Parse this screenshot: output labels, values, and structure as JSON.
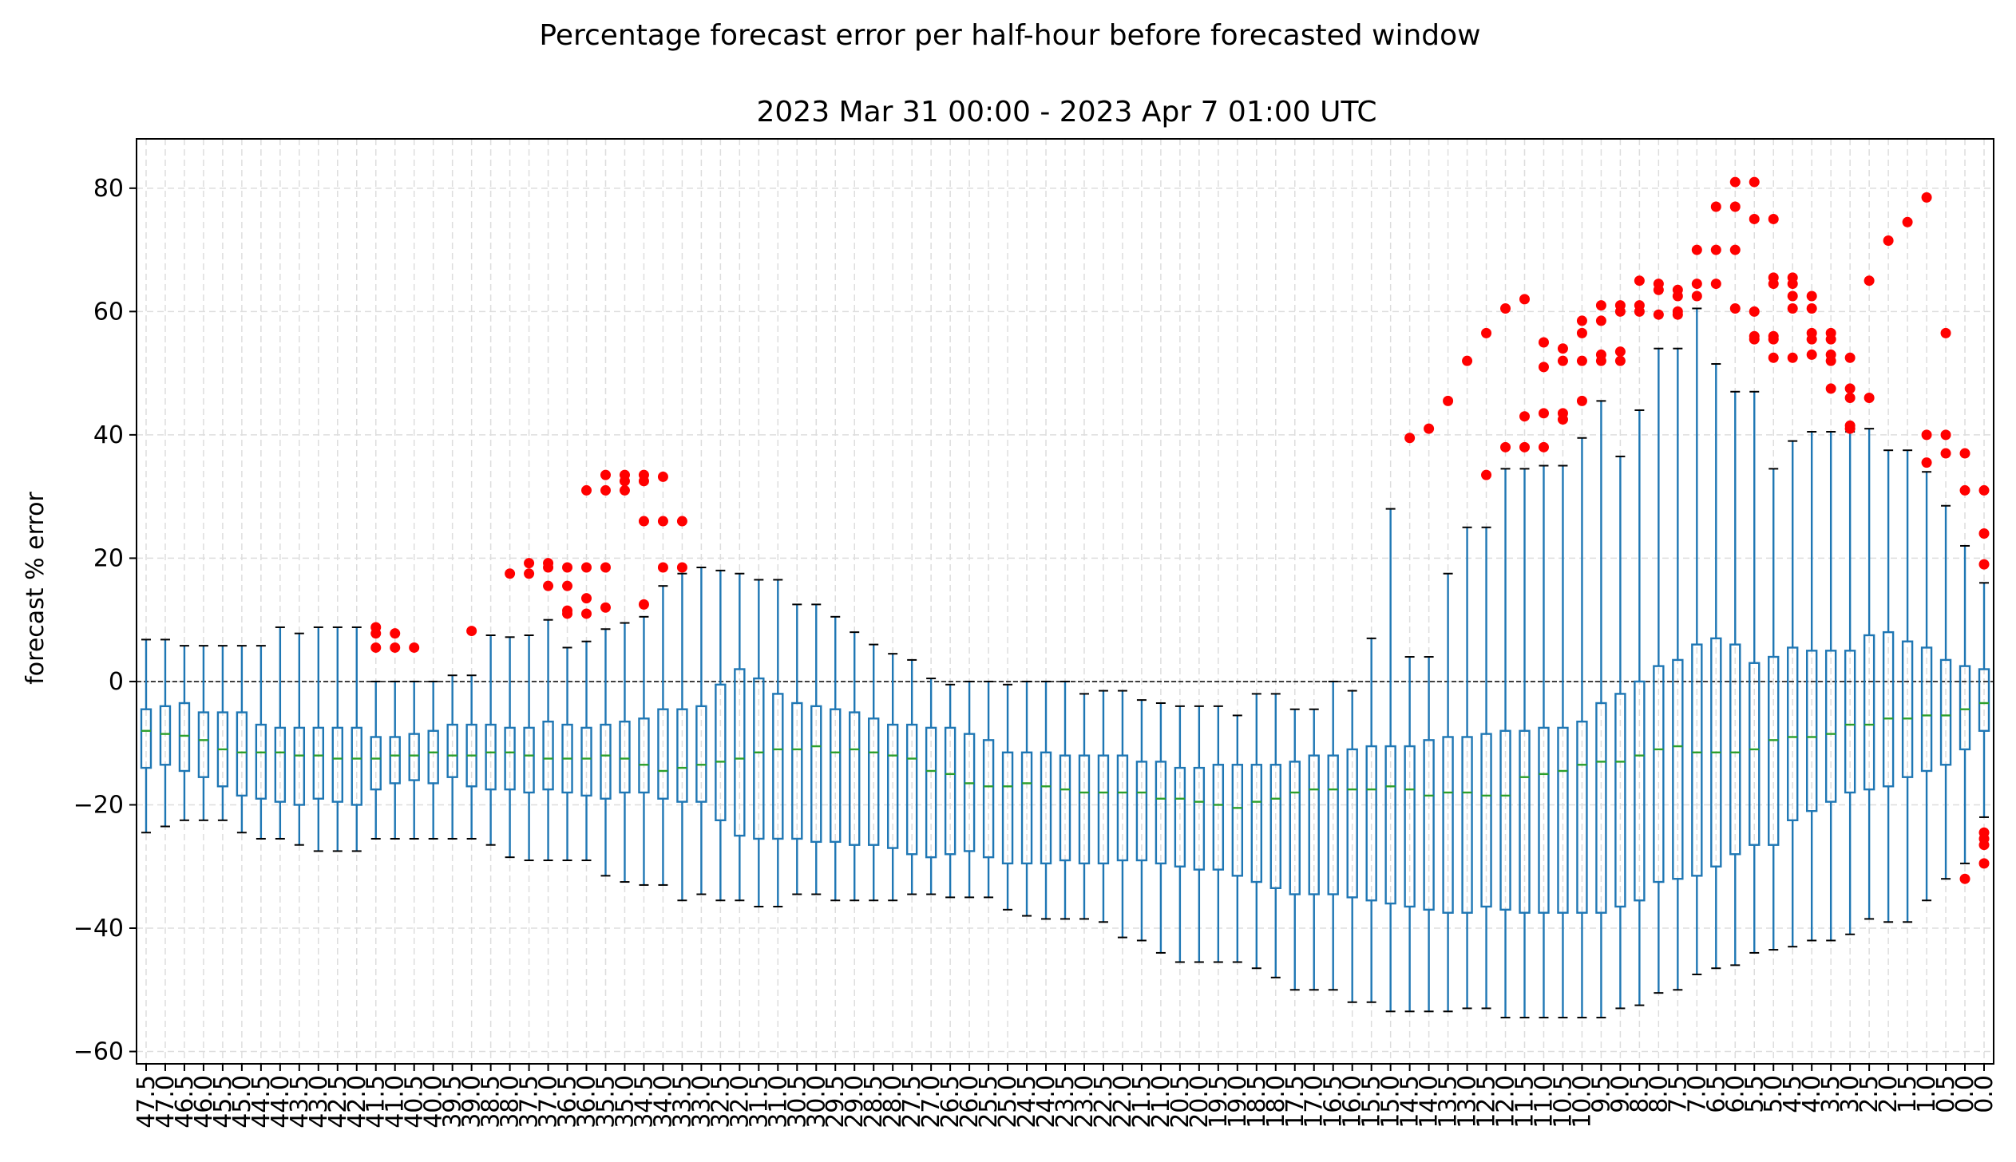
{
  "chart_data": {
    "type": "box",
    "title": "Percentage forecast error per half-hour before forecasted window",
    "subtitle": "2023 Mar 31 00:00 - 2023 Apr 7 01:00 UTC",
    "xlabel": "",
    "ylabel": "forecast % error",
    "ylim": [
      -62,
      88
    ],
    "yticks": [
      -60,
      -40,
      -20,
      0,
      20,
      40,
      60,
      80
    ],
    "grid": true,
    "reference_line": 0,
    "colors": {
      "box": "#1f77b4",
      "median": "#2ca02c",
      "outlier": "#ff0000",
      "grid": "#dddddd"
    },
    "boxes": [
      {
        "x": "47.5",
        "lo": -24.5,
        "q1": -14,
        "med": -8,
        "q3": -4.5,
        "hi": 6.8,
        "out": []
      },
      {
        "x": "47.0",
        "lo": -23.5,
        "q1": -13.5,
        "med": -8.5,
        "q3": -4,
        "hi": 6.8,
        "out": []
      },
      {
        "x": "46.5",
        "lo": -22.5,
        "q1": -14.5,
        "med": -8.8,
        "q3": -3.5,
        "hi": 5.8,
        "out": []
      },
      {
        "x": "46.0",
        "lo": -22.5,
        "q1": -15.5,
        "med": -9.5,
        "q3": -5,
        "hi": 5.8,
        "out": []
      },
      {
        "x": "45.5",
        "lo": -22.5,
        "q1": -17,
        "med": -11,
        "q3": -5,
        "hi": 5.8,
        "out": []
      },
      {
        "x": "45.0",
        "lo": -24.5,
        "q1": -18.5,
        "med": -11.5,
        "q3": -5,
        "hi": 5.8,
        "out": []
      },
      {
        "x": "44.5",
        "lo": -25.5,
        "q1": -19,
        "med": -11.5,
        "q3": -7,
        "hi": 5.8,
        "out": []
      },
      {
        "x": "44.0",
        "lo": -25.5,
        "q1": -19.5,
        "med": -11.5,
        "q3": -7.5,
        "hi": 8.8,
        "out": []
      },
      {
        "x": "43.5",
        "lo": -26.5,
        "q1": -20,
        "med": -12,
        "q3": -7.5,
        "hi": 7.8,
        "out": []
      },
      {
        "x": "43.0",
        "lo": -27.5,
        "q1": -19,
        "med": -12,
        "q3": -7.5,
        "hi": 8.8,
        "out": []
      },
      {
        "x": "42.5",
        "lo": -27.5,
        "q1": -19.5,
        "med": -12.5,
        "q3": -7.5,
        "hi": 8.8,
        "out": []
      },
      {
        "x": "42.0",
        "lo": -27.5,
        "q1": -20,
        "med": -12.5,
        "q3": -7.5,
        "hi": 8.8,
        "out": []
      },
      {
        "x": "41.5",
        "lo": -25.5,
        "q1": -17.5,
        "med": -12.5,
        "q3": -9,
        "hi": 0,
        "out": [
          8.8,
          7.8,
          5.5
        ]
      },
      {
        "x": "41.0",
        "lo": -25.5,
        "q1": -16.5,
        "med": -12,
        "q3": -9,
        "hi": 0,
        "out": [
          7.8,
          5.5
        ]
      },
      {
        "x": "40.5",
        "lo": -25.5,
        "q1": -16,
        "med": -12,
        "q3": -8.5,
        "hi": 0,
        "out": [
          5.5
        ]
      },
      {
        "x": "40.0",
        "lo": -25.5,
        "q1": -16.5,
        "med": -11.5,
        "q3": -8,
        "hi": 0,
        "out": []
      },
      {
        "x": "39.5",
        "lo": -25.5,
        "q1": -15.5,
        "med": -12,
        "q3": -7,
        "hi": 1,
        "out": []
      },
      {
        "x": "39.0",
        "lo": -25.5,
        "q1": -17,
        "med": -12,
        "q3": -7,
        "hi": 1,
        "out": [
          8.2
        ]
      },
      {
        "x": "38.5",
        "lo": -26.5,
        "q1": -17.5,
        "med": -11.5,
        "q3": -7,
        "hi": 7.5,
        "out": []
      },
      {
        "x": "38.0",
        "lo": -28.5,
        "q1": -17.5,
        "med": -11.5,
        "q3": -7.5,
        "hi": 7.2,
        "out": [
          17.5
        ]
      },
      {
        "x": "37.5",
        "lo": -29,
        "q1": -18,
        "med": -12,
        "q3": -7.5,
        "hi": 7.5,
        "out": [
          19.2,
          17.5
        ]
      },
      {
        "x": "37.0",
        "lo": -29,
        "q1": -17.5,
        "med": -12.5,
        "q3": -6.5,
        "hi": 10,
        "out": [
          19.2,
          18.5,
          15.5
        ]
      },
      {
        "x": "36.5",
        "lo": -29,
        "q1": -18,
        "med": -12.5,
        "q3": -7,
        "hi": 5.5,
        "out": [
          18.5,
          15.5,
          11.5,
          11
        ]
      },
      {
        "x": "36.0",
        "lo": -29,
        "q1": -18.5,
        "med": -12.5,
        "q3": -7.5,
        "hi": 6.5,
        "out": [
          31,
          18.5,
          13.5,
          11
        ]
      },
      {
        "x": "35.5",
        "lo": -31.5,
        "q1": -19,
        "med": -12,
        "q3": -7,
        "hi": 8.5,
        "out": [
          33.5,
          31,
          18.5,
          12
        ]
      },
      {
        "x": "35.0",
        "lo": -32.5,
        "q1": -18,
        "med": -12.5,
        "q3": -6.5,
        "hi": 9.5,
        "out": [
          33.5,
          32.5,
          31
        ]
      },
      {
        "x": "34.5",
        "lo": -33,
        "q1": -18,
        "med": -13.5,
        "q3": -6,
        "hi": 10.5,
        "out": [
          33.5,
          32.5,
          26,
          12.5
        ]
      },
      {
        "x": "34.0",
        "lo": -33,
        "q1": -19,
        "med": -14.5,
        "q3": -4.5,
        "hi": 15.5,
        "out": [
          33.2,
          26,
          18.5
        ]
      },
      {
        "x": "33.5",
        "lo": -35.5,
        "q1": -19.5,
        "med": -14,
        "q3": -4.5,
        "hi": 17.5,
        "out": [
          26,
          18.5
        ]
      },
      {
        "x": "33.0",
        "lo": -34.5,
        "q1": -19.5,
        "med": -13.5,
        "q3": -4,
        "hi": 18.5,
        "out": []
      },
      {
        "x": "32.5",
        "lo": -35.5,
        "q1": -22.5,
        "med": -13,
        "q3": -0.5,
        "hi": 18,
        "out": []
      },
      {
        "x": "32.0",
        "lo": -35.5,
        "q1": -25,
        "med": -12.5,
        "q3": 2,
        "hi": 17.5,
        "out": []
      },
      {
        "x": "31.5",
        "lo": -36.5,
        "q1": -25.5,
        "med": -11.5,
        "q3": 0.5,
        "hi": 16.5,
        "out": []
      },
      {
        "x": "31.0",
        "lo": -36.5,
        "q1": -25.5,
        "med": -11,
        "q3": -2,
        "hi": 16.5,
        "out": []
      },
      {
        "x": "30.5",
        "lo": -34.5,
        "q1": -25.5,
        "med": -11,
        "q3": -3.5,
        "hi": 12.5,
        "out": []
      },
      {
        "x": "30.0",
        "lo": -34.5,
        "q1": -26,
        "med": -10.5,
        "q3": -4,
        "hi": 12.5,
        "out": []
      },
      {
        "x": "29.5",
        "lo": -35.5,
        "q1": -26,
        "med": -11.5,
        "q3": -4.5,
        "hi": 10.5,
        "out": []
      },
      {
        "x": "29.0",
        "lo": -35.5,
        "q1": -26.5,
        "med": -11,
        "q3": -5,
        "hi": 8,
        "out": []
      },
      {
        "x": "28.5",
        "lo": -35.5,
        "q1": -26.5,
        "med": -11.5,
        "q3": -6,
        "hi": 6,
        "out": []
      },
      {
        "x": "28.0",
        "lo": -35.5,
        "q1": -27,
        "med": -12,
        "q3": -7,
        "hi": 4.5,
        "out": []
      },
      {
        "x": "27.5",
        "lo": -34.5,
        "q1": -28,
        "med": -12.5,
        "q3": -7,
        "hi": 3.5,
        "out": []
      },
      {
        "x": "27.0",
        "lo": -34.5,
        "q1": -28.5,
        "med": -14.5,
        "q3": -7.5,
        "hi": 0.5,
        "out": []
      },
      {
        "x": "26.5",
        "lo": -35,
        "q1": -28,
        "med": -15,
        "q3": -7.5,
        "hi": -0.5,
        "out": []
      },
      {
        "x": "26.0",
        "lo": -35,
        "q1": -27.5,
        "med": -16.5,
        "q3": -8.5,
        "hi": 0,
        "out": []
      },
      {
        "x": "25.5",
        "lo": -35,
        "q1": -28.5,
        "med": -17,
        "q3": -9.5,
        "hi": 0,
        "out": []
      },
      {
        "x": "25.0",
        "lo": -37,
        "q1": -29.5,
        "med": -17,
        "q3": -11.5,
        "hi": -0.5,
        "out": []
      },
      {
        "x": "24.5",
        "lo": -38,
        "q1": -29.5,
        "med": -16.5,
        "q3": -11.5,
        "hi": 0,
        "out": []
      },
      {
        "x": "24.0",
        "lo": -38.5,
        "q1": -29.5,
        "med": -17,
        "q3": -11.5,
        "hi": 0,
        "out": []
      },
      {
        "x": "23.5",
        "lo": -38.5,
        "q1": -29,
        "med": -17.5,
        "q3": -12,
        "hi": 0,
        "out": []
      },
      {
        "x": "23.0",
        "lo": -38.5,
        "q1": -29.5,
        "med": -18,
        "q3": -12,
        "hi": -2,
        "out": []
      },
      {
        "x": "22.5",
        "lo": -39,
        "q1": -29.5,
        "med": -18,
        "q3": -12,
        "hi": -1.5,
        "out": []
      },
      {
        "x": "22.0",
        "lo": -41.5,
        "q1": -29,
        "med": -18,
        "q3": -12,
        "hi": -1.5,
        "out": []
      },
      {
        "x": "21.5",
        "lo": -42,
        "q1": -29,
        "med": -18,
        "q3": -13,
        "hi": -3,
        "out": []
      },
      {
        "x": "21.0",
        "lo": -44,
        "q1": -29.5,
        "med": -19,
        "q3": -13,
        "hi": -3.5,
        "out": []
      },
      {
        "x": "20.5",
        "lo": -45.5,
        "q1": -30,
        "med": -19,
        "q3": -14,
        "hi": -4,
        "out": []
      },
      {
        "x": "20.0",
        "lo": -45.5,
        "q1": -30.5,
        "med": -19.5,
        "q3": -14,
        "hi": -4,
        "out": []
      },
      {
        "x": "19.5",
        "lo": -45.5,
        "q1": -30.5,
        "med": -20,
        "q3": -13.5,
        "hi": -4,
        "out": []
      },
      {
        "x": "19.0",
        "lo": -45.5,
        "q1": -31.5,
        "med": -20.5,
        "q3": -13.5,
        "hi": -5.5,
        "out": []
      },
      {
        "x": "18.5",
        "lo": -46.5,
        "q1": -32.5,
        "med": -19.5,
        "q3": -13.5,
        "hi": -2,
        "out": []
      },
      {
        "x": "18.0",
        "lo": -48,
        "q1": -33.5,
        "med": -19,
        "q3": -13.5,
        "hi": -2,
        "out": []
      },
      {
        "x": "17.5",
        "lo": -50,
        "q1": -34.5,
        "med": -18,
        "q3": -13,
        "hi": -4.5,
        "out": []
      },
      {
        "x": "17.0",
        "lo": -50,
        "q1": -34.5,
        "med": -17.5,
        "q3": -12,
        "hi": -4.5,
        "out": []
      },
      {
        "x": "16.5",
        "lo": -50,
        "q1": -34.5,
        "med": -17.5,
        "q3": -12,
        "hi": 0,
        "out": []
      },
      {
        "x": "16.0",
        "lo": -52,
        "q1": -35,
        "med": -17.5,
        "q3": -11,
        "hi": -1.5,
        "out": []
      },
      {
        "x": "15.5",
        "lo": -52,
        "q1": -35.5,
        "med": -17.5,
        "q3": -10.5,
        "hi": 7,
        "out": []
      },
      {
        "x": "15.0",
        "lo": -53.5,
        "q1": -36,
        "med": -17,
        "q3": -10.5,
        "hi": 28,
        "out": []
      },
      {
        "x": "14.5",
        "lo": -53.5,
        "q1": -36.5,
        "med": -17.5,
        "q3": -10.5,
        "hi": 4,
        "out": [
          39.5
        ]
      },
      {
        "x": "14.0",
        "lo": -53.5,
        "q1": -37,
        "med": -18.5,
        "q3": -9.5,
        "hi": 4,
        "out": [
          41
        ]
      },
      {
        "x": "13.5",
        "lo": -53.5,
        "q1": -37.5,
        "med": -18,
        "q3": -9,
        "hi": 17.5,
        "out": [
          45.5
        ]
      },
      {
        "x": "13.0",
        "lo": -53,
        "q1": -37.5,
        "med": -18,
        "q3": -9,
        "hi": 25,
        "out": [
          52
        ]
      },
      {
        "x": "12.5",
        "lo": -53,
        "q1": -36.5,
        "med": -18.5,
        "q3": -8.5,
        "hi": 25,
        "out": [
          56.5,
          33.5
        ]
      },
      {
        "x": "12.0",
        "lo": -54.5,
        "q1": -37,
        "med": -18.5,
        "q3": -8,
        "hi": 34.5,
        "out": [
          60.5,
          38
        ]
      },
      {
        "x": "11.5",
        "lo": -54.5,
        "q1": -37.5,
        "med": -15.5,
        "q3": -8,
        "hi": 34.5,
        "out": [
          62,
          43,
          38
        ]
      },
      {
        "x": "11.0",
        "lo": -54.5,
        "q1": -37.5,
        "med": -15,
        "q3": -7.5,
        "hi": 35,
        "out": [
          55,
          51,
          43.5,
          38
        ]
      },
      {
        "x": "10.5",
        "lo": -54.5,
        "q1": -37.5,
        "med": -14.5,
        "q3": -7.5,
        "hi": 35,
        "out": [
          54,
          52,
          43.5,
          42.5
        ]
      },
      {
        "x": "10.0",
        "lo": -54.5,
        "q1": -37.5,
        "med": -13.5,
        "q3": -6.5,
        "hi": 39.5,
        "out": [
          58.5,
          56.5,
          52,
          45.5
        ]
      },
      {
        "x": "9.5",
        "lo": -54.5,
        "q1": -37.5,
        "med": -13,
        "q3": -3.5,
        "hi": 45.5,
        "out": [
          61,
          58.5,
          53,
          52
        ]
      },
      {
        "x": "9.0",
        "lo": -53,
        "q1": -36.5,
        "med": -13,
        "q3": -2,
        "hi": 36.5,
        "out": [
          61,
          60,
          53.5,
          52
        ]
      },
      {
        "x": "8.5",
        "lo": -52.5,
        "q1": -35.5,
        "med": -12,
        "q3": 0,
        "hi": 44,
        "out": [
          65,
          61,
          60
        ]
      },
      {
        "x": "8.0",
        "lo": -50.5,
        "q1": -32.5,
        "med": -11,
        "q3": 2.5,
        "hi": 54,
        "out": [
          64.5,
          63.5,
          59.5
        ]
      },
      {
        "x": "7.5",
        "lo": -50,
        "q1": -32,
        "med": -10.5,
        "q3": 3.5,
        "hi": 54,
        "out": [
          63.5,
          62.5,
          60,
          59.5
        ]
      },
      {
        "x": "7.0",
        "lo": -47.5,
        "q1": -31.5,
        "med": -11.5,
        "q3": 6,
        "hi": 60.5,
        "out": [
          70,
          64.5,
          62.5
        ]
      },
      {
        "x": "6.5",
        "lo": -46.5,
        "q1": -30,
        "med": -11.5,
        "q3": 7,
        "hi": 51.5,
        "out": [
          77,
          70,
          64.5
        ]
      },
      {
        "x": "6.0",
        "lo": -46,
        "q1": -28,
        "med": -11.5,
        "q3": 6,
        "hi": 47,
        "out": [
          81,
          77,
          70,
          60.5
        ]
      },
      {
        "x": "5.5",
        "lo": -44,
        "q1": -26.5,
        "med": -11,
        "q3": 3,
        "hi": 47,
        "out": [
          81,
          75,
          60,
          56,
          55.5
        ]
      },
      {
        "x": "5.0",
        "lo": -43.5,
        "q1": -26.5,
        "med": -9.5,
        "q3": 4,
        "hi": 34.5,
        "out": [
          75,
          65.5,
          64.5,
          56,
          55.5,
          52.5
        ]
      },
      {
        "x": "4.5",
        "lo": -43,
        "q1": -22.5,
        "med": -9,
        "q3": 5.5,
        "hi": 39,
        "out": [
          65.5,
          64.5,
          62.5,
          60.5,
          52.5
        ]
      },
      {
        "x": "4.0",
        "lo": -42,
        "q1": -21,
        "med": -9,
        "q3": 5,
        "hi": 40.5,
        "out": [
          62.5,
          60.5,
          56.5,
          55.5,
          53
        ]
      },
      {
        "x": "3.5",
        "lo": -42,
        "q1": -19.5,
        "med": -8.5,
        "q3": 5,
        "hi": 40.5,
        "out": [
          56.5,
          55.5,
          53,
          52,
          47.5
        ]
      },
      {
        "x": "3.0",
        "lo": -41,
        "q1": -18,
        "med": -7,
        "q3": 5,
        "hi": 40.5,
        "out": [
          52.5,
          47.5,
          46,
          41.5,
          41
        ]
      },
      {
        "x": "2.5",
        "lo": -38.5,
        "q1": -17.5,
        "med": -7,
        "q3": 7.5,
        "hi": 41,
        "out": [
          65,
          46
        ]
      },
      {
        "x": "2.0",
        "lo": -39,
        "q1": -17,
        "med": -6,
        "q3": 8,
        "hi": 37.5,
        "out": [
          71.5
        ]
      },
      {
        "x": "1.5",
        "lo": -39,
        "q1": -15.5,
        "med": -6,
        "q3": 6.5,
        "hi": 37.5,
        "out": [
          74.5
        ]
      },
      {
        "x": "1.0",
        "lo": -35.5,
        "q1": -14.5,
        "med": -5.5,
        "q3": 5.5,
        "hi": 34,
        "out": [
          78.5,
          40,
          35.5
        ]
      },
      {
        "x": "0.5",
        "lo": -32,
        "q1": -13.5,
        "med": -5.5,
        "q3": 3.5,
        "hi": 28.5,
        "out": [
          56.5,
          40,
          37
        ]
      },
      {
        "x": "0.0",
        "lo": -29.5,
        "q1": -11,
        "med": -4.5,
        "q3": 2.5,
        "hi": 22,
        "out": [
          37,
          31,
          -32
        ]
      },
      {
        "x": "0.0",
        "lo": -22,
        "q1": -8,
        "med": -3.5,
        "q3": 2,
        "hi": 16,
        "out": [
          31,
          24,
          19,
          -24.5,
          -25.5,
          -26.5,
          -29.5
        ]
      }
    ]
  }
}
